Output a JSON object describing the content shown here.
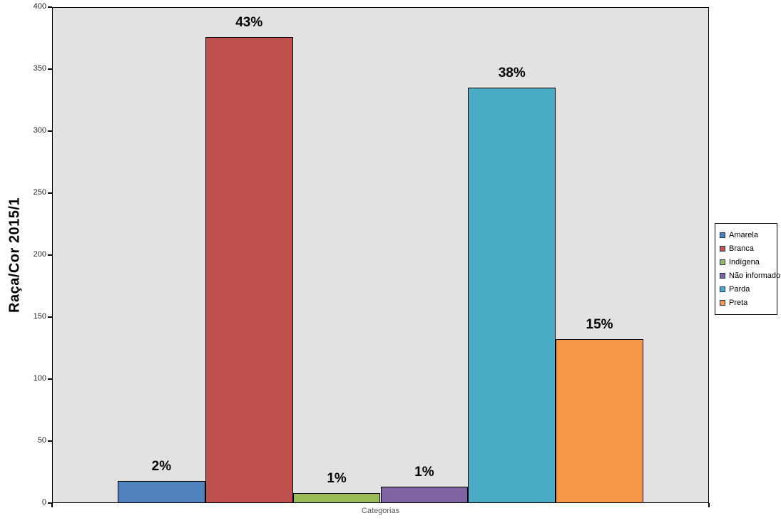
{
  "chart_data": {
    "type": "bar",
    "title": "",
    "ylabel": "Raça/Cor 2015/1",
    "xlabel": "Categorias",
    "ylim": [
      0,
      400
    ],
    "yticks": [
      0,
      50,
      100,
      150,
      200,
      250,
      300,
      350,
      400
    ],
    "grid": false,
    "legend_position": "right",
    "plot_background": "#E2E2E2",
    "axis_color": "#000000",
    "categories": [
      "Amarela",
      "Branca",
      "Indígena",
      "Não informado",
      "Parda",
      "Preta"
    ],
    "series": [
      {
        "name": "Amarela",
        "value": 18,
        "percent_label": "2%",
        "color": "#4F81BD"
      },
      {
        "name": "Branca",
        "value": 376,
        "percent_label": "43%",
        "color": "#C0504D"
      },
      {
        "name": "Indígena",
        "value": 8,
        "percent_label": "1%",
        "color": "#9BBB59"
      },
      {
        "name": "Não informado",
        "value": 13,
        "percent_label": "1%",
        "color": "#8064A2"
      },
      {
        "name": "Parda",
        "value": 335,
        "percent_label": "38%",
        "color": "#4BACC6"
      },
      {
        "name": "Preta",
        "value": 132,
        "percent_label": "15%",
        "color": "#F79646"
      }
    ]
  }
}
